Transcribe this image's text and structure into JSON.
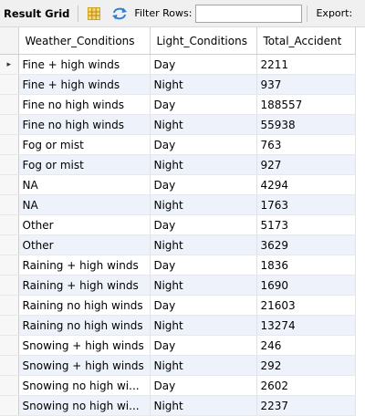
{
  "toolbar": {
    "title": "Result Grid",
    "grid_icon": "grid-view-icon",
    "refresh_icon": "refresh-icon",
    "filter_label": "Filter Rows:",
    "filter_value": "",
    "export_label": "Export:"
  },
  "columns": [
    "Weather_Conditions",
    "Light_Conditions",
    "Total_Accident"
  ],
  "current_row_marker": "▸",
  "rows": [
    [
      "Fine + high winds",
      "Day",
      "2211"
    ],
    [
      "Fine + high winds",
      "Night",
      "937"
    ],
    [
      "Fine no high winds",
      "Day",
      "188557"
    ],
    [
      "Fine no high winds",
      "Night",
      "55938"
    ],
    [
      "Fog or mist",
      "Day",
      "763"
    ],
    [
      "Fog or mist",
      "Night",
      "927"
    ],
    [
      "NA",
      "Day",
      "4294"
    ],
    [
      "NA",
      "Night",
      "1763"
    ],
    [
      "Other",
      "Day",
      "5173"
    ],
    [
      "Other",
      "Night",
      "3629"
    ],
    [
      "Raining + high winds",
      "Day",
      "1836"
    ],
    [
      "Raining + high winds",
      "Night",
      "1690"
    ],
    [
      "Raining no high winds",
      "Day",
      "21603"
    ],
    [
      "Raining no high winds",
      "Night",
      "13274"
    ],
    [
      "Snowing + high winds",
      "Day",
      "246"
    ],
    [
      "Snowing + high winds",
      "Night",
      "292"
    ],
    [
      "Snowing no high wi...",
      "Day",
      "2602"
    ],
    [
      "Snowing no high wi...",
      "Night",
      "2237"
    ]
  ]
}
